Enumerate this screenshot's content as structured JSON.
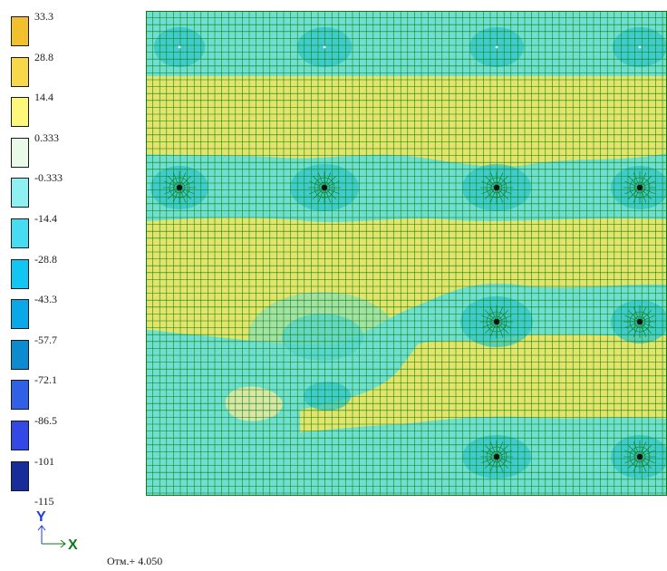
{
  "legend": {
    "labels": [
      "33.3",
      "28.8",
      "14.4",
      "0.333",
      "-0.333",
      "-14.4",
      "-28.8",
      "-43.3",
      "-57.7",
      "-72.1",
      "-86.5",
      "-101",
      "-115"
    ],
    "colors": [
      "#f2c02d",
      "#f7d848",
      "#fdf77a",
      "#e9fae9",
      "#8ff0f2",
      "#46dcf2",
      "#11c6f2",
      "#09a8e8",
      "#0c8bd0",
      "#2f60e6",
      "#3448e8",
      "#162d9a"
    ]
  },
  "contour": {
    "bands": [
      {
        "level": 0.333,
        "fill": "#6fe0cf"
      },
      {
        "level": 14.4,
        "fill": "#e3e56a"
      },
      {
        "level": -28.8,
        "fill": "#2fc6c9"
      }
    ],
    "mesh_color": "#0e7a16",
    "node_color": "#111111"
  },
  "axes": {
    "y_label": "Y",
    "x_label": "X",
    "y_color": "#1a3de0",
    "x_color": "#0f7a1a"
  },
  "elevation_label": "Отм.+ 4.050"
}
